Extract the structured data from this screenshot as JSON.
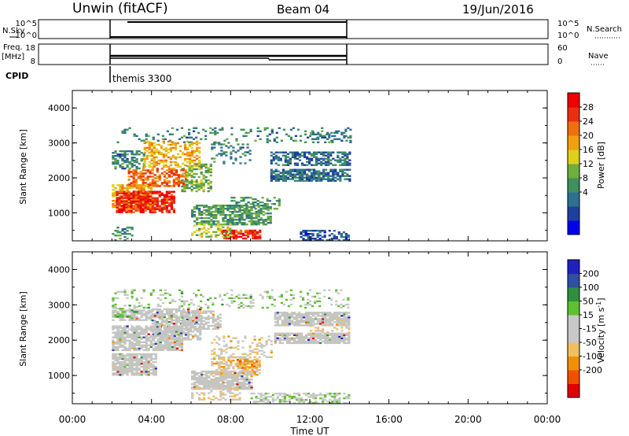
{
  "header": {
    "station": "Unwin (fitACF)",
    "beam": "Beam 04",
    "date": "19/Jun/2016"
  },
  "strips": {
    "nsky_label": "N.Sky",
    "nsky_ticks": [
      "10^5",
      "10^0"
    ],
    "nsearch_label": "N.Search",
    "freq_label": "Freq.",
    "freq_unit": "[MHz]",
    "freq_ticks": [
      "18",
      "8"
    ],
    "nave_label": "Nave",
    "nave_ticks": [
      "60",
      "0"
    ],
    "cpid_label": "CPID",
    "cpid_value": "themis 3300"
  },
  "colors": {
    "power_scale": [
      "#0000ee",
      "#1f3f9c",
      "#2f6f8f",
      "#3f8f5f",
      "#6fae3f",
      "#dfd020",
      "#f0a010",
      "#f07010",
      "#e83010",
      "#ee0000"
    ],
    "velocity_scale": [
      "#e00000",
      "#f05000",
      "#f09000",
      "#f0c060",
      "#c8c8c8",
      "#c8c8c8",
      "#60c030",
      "#2f8f3f",
      "#2f4f9f",
      "#2020c0"
    ],
    "grey": "#c4c4c0"
  },
  "chart_data": [
    {
      "type": "heatmap",
      "name": "power",
      "ylabel": "Slant Range [km]",
      "xlim": [
        0,
        24
      ],
      "ylim": [
        200,
        4500
      ],
      "y_ticks": [
        1000,
        2000,
        3000,
        4000
      ],
      "colorbar_label": "Power [dB]",
      "colorbar_ticks": [
        "28",
        "24",
        "20",
        "16",
        "12",
        "8",
        "4"
      ],
      "colorbar_range": [
        0,
        32
      ],
      "regions": [
        {
          "t0": 2.0,
          "t1": 14.0,
          "r0": 3000,
          "r1": 3450,
          "v": 10,
          "d": 0.15
        },
        {
          "t0": 2.0,
          "t1": 3.6,
          "r0": 2250,
          "r1": 2750,
          "v": 10,
          "d": 0.55
        },
        {
          "t0": 3.6,
          "t1": 6.4,
          "r0": 2300,
          "r1": 3050,
          "v": 20,
          "d": 0.45
        },
        {
          "t0": 2.8,
          "t1": 5.8,
          "r0": 1750,
          "r1": 2250,
          "v": 24,
          "d": 0.6
        },
        {
          "t0": 2.0,
          "t1": 4.0,
          "r0": 1100,
          "r1": 1800,
          "v": 20,
          "d": 0.7
        },
        {
          "t0": 2.2,
          "t1": 5.2,
          "r0": 1000,
          "r1": 1600,
          "v": 28,
          "d": 0.8
        },
        {
          "t0": 5.5,
          "t1": 7.0,
          "r0": 1600,
          "r1": 2400,
          "v": 14,
          "d": 0.45
        },
        {
          "t0": 6.0,
          "t1": 10.0,
          "r0": 650,
          "r1": 1200,
          "v": 12,
          "d": 0.65
        },
        {
          "t0": 7.5,
          "t1": 9.5,
          "r0": 250,
          "r1": 500,
          "v": 28,
          "d": 0.7
        },
        {
          "t0": 6.0,
          "t1": 8.0,
          "r0": 300,
          "r1": 700,
          "v": 16,
          "d": 0.4
        },
        {
          "t0": 8.0,
          "t1": 10.5,
          "r0": 1100,
          "r1": 1450,
          "v": 12,
          "d": 0.4
        },
        {
          "t0": 10.0,
          "t1": 14.0,
          "r0": 1900,
          "r1": 2250,
          "v": 8,
          "d": 0.7
        },
        {
          "t0": 10.0,
          "t1": 14.0,
          "r0": 2350,
          "r1": 2750,
          "v": 8,
          "d": 0.6
        },
        {
          "t0": 11.5,
          "t1": 14.0,
          "r0": 200,
          "r1": 500,
          "v": 6,
          "d": 0.55
        },
        {
          "t0": 7.0,
          "t1": 9.0,
          "r0": 2400,
          "r1": 3000,
          "v": 10,
          "d": 0.2
        },
        {
          "t0": 12.0,
          "t1": 14.0,
          "r0": 3000,
          "r1": 3300,
          "v": 10,
          "d": 0.3
        },
        {
          "t0": 2.0,
          "t1": 3.0,
          "r0": 200,
          "r1": 600,
          "v": 10,
          "d": 0.3
        }
      ]
    },
    {
      "type": "heatmap",
      "name": "velocity",
      "ylabel": "Slant Range [km]",
      "xlabel": "Time UT",
      "xlim": [
        0,
        24
      ],
      "ylim": [
        200,
        4500
      ],
      "x_ticks": [
        "00:00",
        "04:00",
        "08:00",
        "12:00",
        "16:00",
        "20:00",
        "00:00"
      ],
      "y_ticks": [
        1000,
        2000,
        3000,
        4000
      ],
      "colorbar_label": "Velocity [m s^-1]",
      "colorbar_ticks": [
        "200",
        "100",
        "50",
        "15",
        "-15",
        "-50",
        "-100",
        "-200"
      ],
      "colorbar_range": [
        -250,
        250
      ],
      "regions": [
        {
          "t0": 2.0,
          "t1": 4.0,
          "r0": 2550,
          "r1": 2850,
          "v": 0,
          "d": 0.75,
          "g": true
        },
        {
          "t0": 2.0,
          "t1": 5.5,
          "r0": 1700,
          "r1": 2400,
          "v": 0,
          "d": 0.8,
          "g": true
        },
        {
          "t0": 4.0,
          "t1": 6.5,
          "r0": 2000,
          "r1": 2900,
          "v": 0,
          "d": 0.7,
          "g": true
        },
        {
          "t0": 2.0,
          "t1": 4.2,
          "r0": 1000,
          "r1": 1600,
          "v": 0,
          "d": 0.85,
          "g": true
        },
        {
          "t0": 5.5,
          "t1": 7.5,
          "r0": 2300,
          "r1": 2800,
          "v": 0,
          "d": 0.6,
          "g": true
        },
        {
          "t0": 6.0,
          "t1": 9.0,
          "r0": 600,
          "r1": 1100,
          "v": 0,
          "d": 0.85,
          "g": true
        },
        {
          "t0": 7.0,
          "t1": 9.5,
          "r0": 1000,
          "r1": 1500,
          "v": -60,
          "d": 0.55
        },
        {
          "t0": 8.3,
          "t1": 9.3,
          "r0": 1200,
          "r1": 1450,
          "v": -120,
          "d": 0.6
        },
        {
          "t0": 10.2,
          "t1": 14.0,
          "r0": 1900,
          "r1": 2200,
          "v": 0,
          "d": 0.85,
          "g": true
        },
        {
          "t0": 10.2,
          "t1": 14.0,
          "r0": 2400,
          "r1": 2800,
          "v": 0,
          "d": 0.8,
          "g": true
        },
        {
          "t0": 9.0,
          "t1": 14.0,
          "r0": 200,
          "r1": 500,
          "v": 30,
          "d": 0.5
        },
        {
          "t0": 6.0,
          "t1": 8.5,
          "r0": 300,
          "r1": 650,
          "v": -30,
          "d": 0.4
        },
        {
          "t0": 7.0,
          "t1": 10.0,
          "r0": 1500,
          "r1": 2100,
          "v": -40,
          "d": 0.3
        },
        {
          "t0": 2.0,
          "t1": 14.0,
          "r0": 2900,
          "r1": 3400,
          "v": 40,
          "d": 0.15
        },
        {
          "t0": 2.0,
          "t1": 3.5,
          "r0": 2600,
          "r1": 3000,
          "v": 60,
          "d": 0.3
        },
        {
          "t0": 12.0,
          "t1": 14.0,
          "r0": 2200,
          "r1": 2450,
          "v": -40,
          "d": 0.3
        }
      ]
    }
  ]
}
